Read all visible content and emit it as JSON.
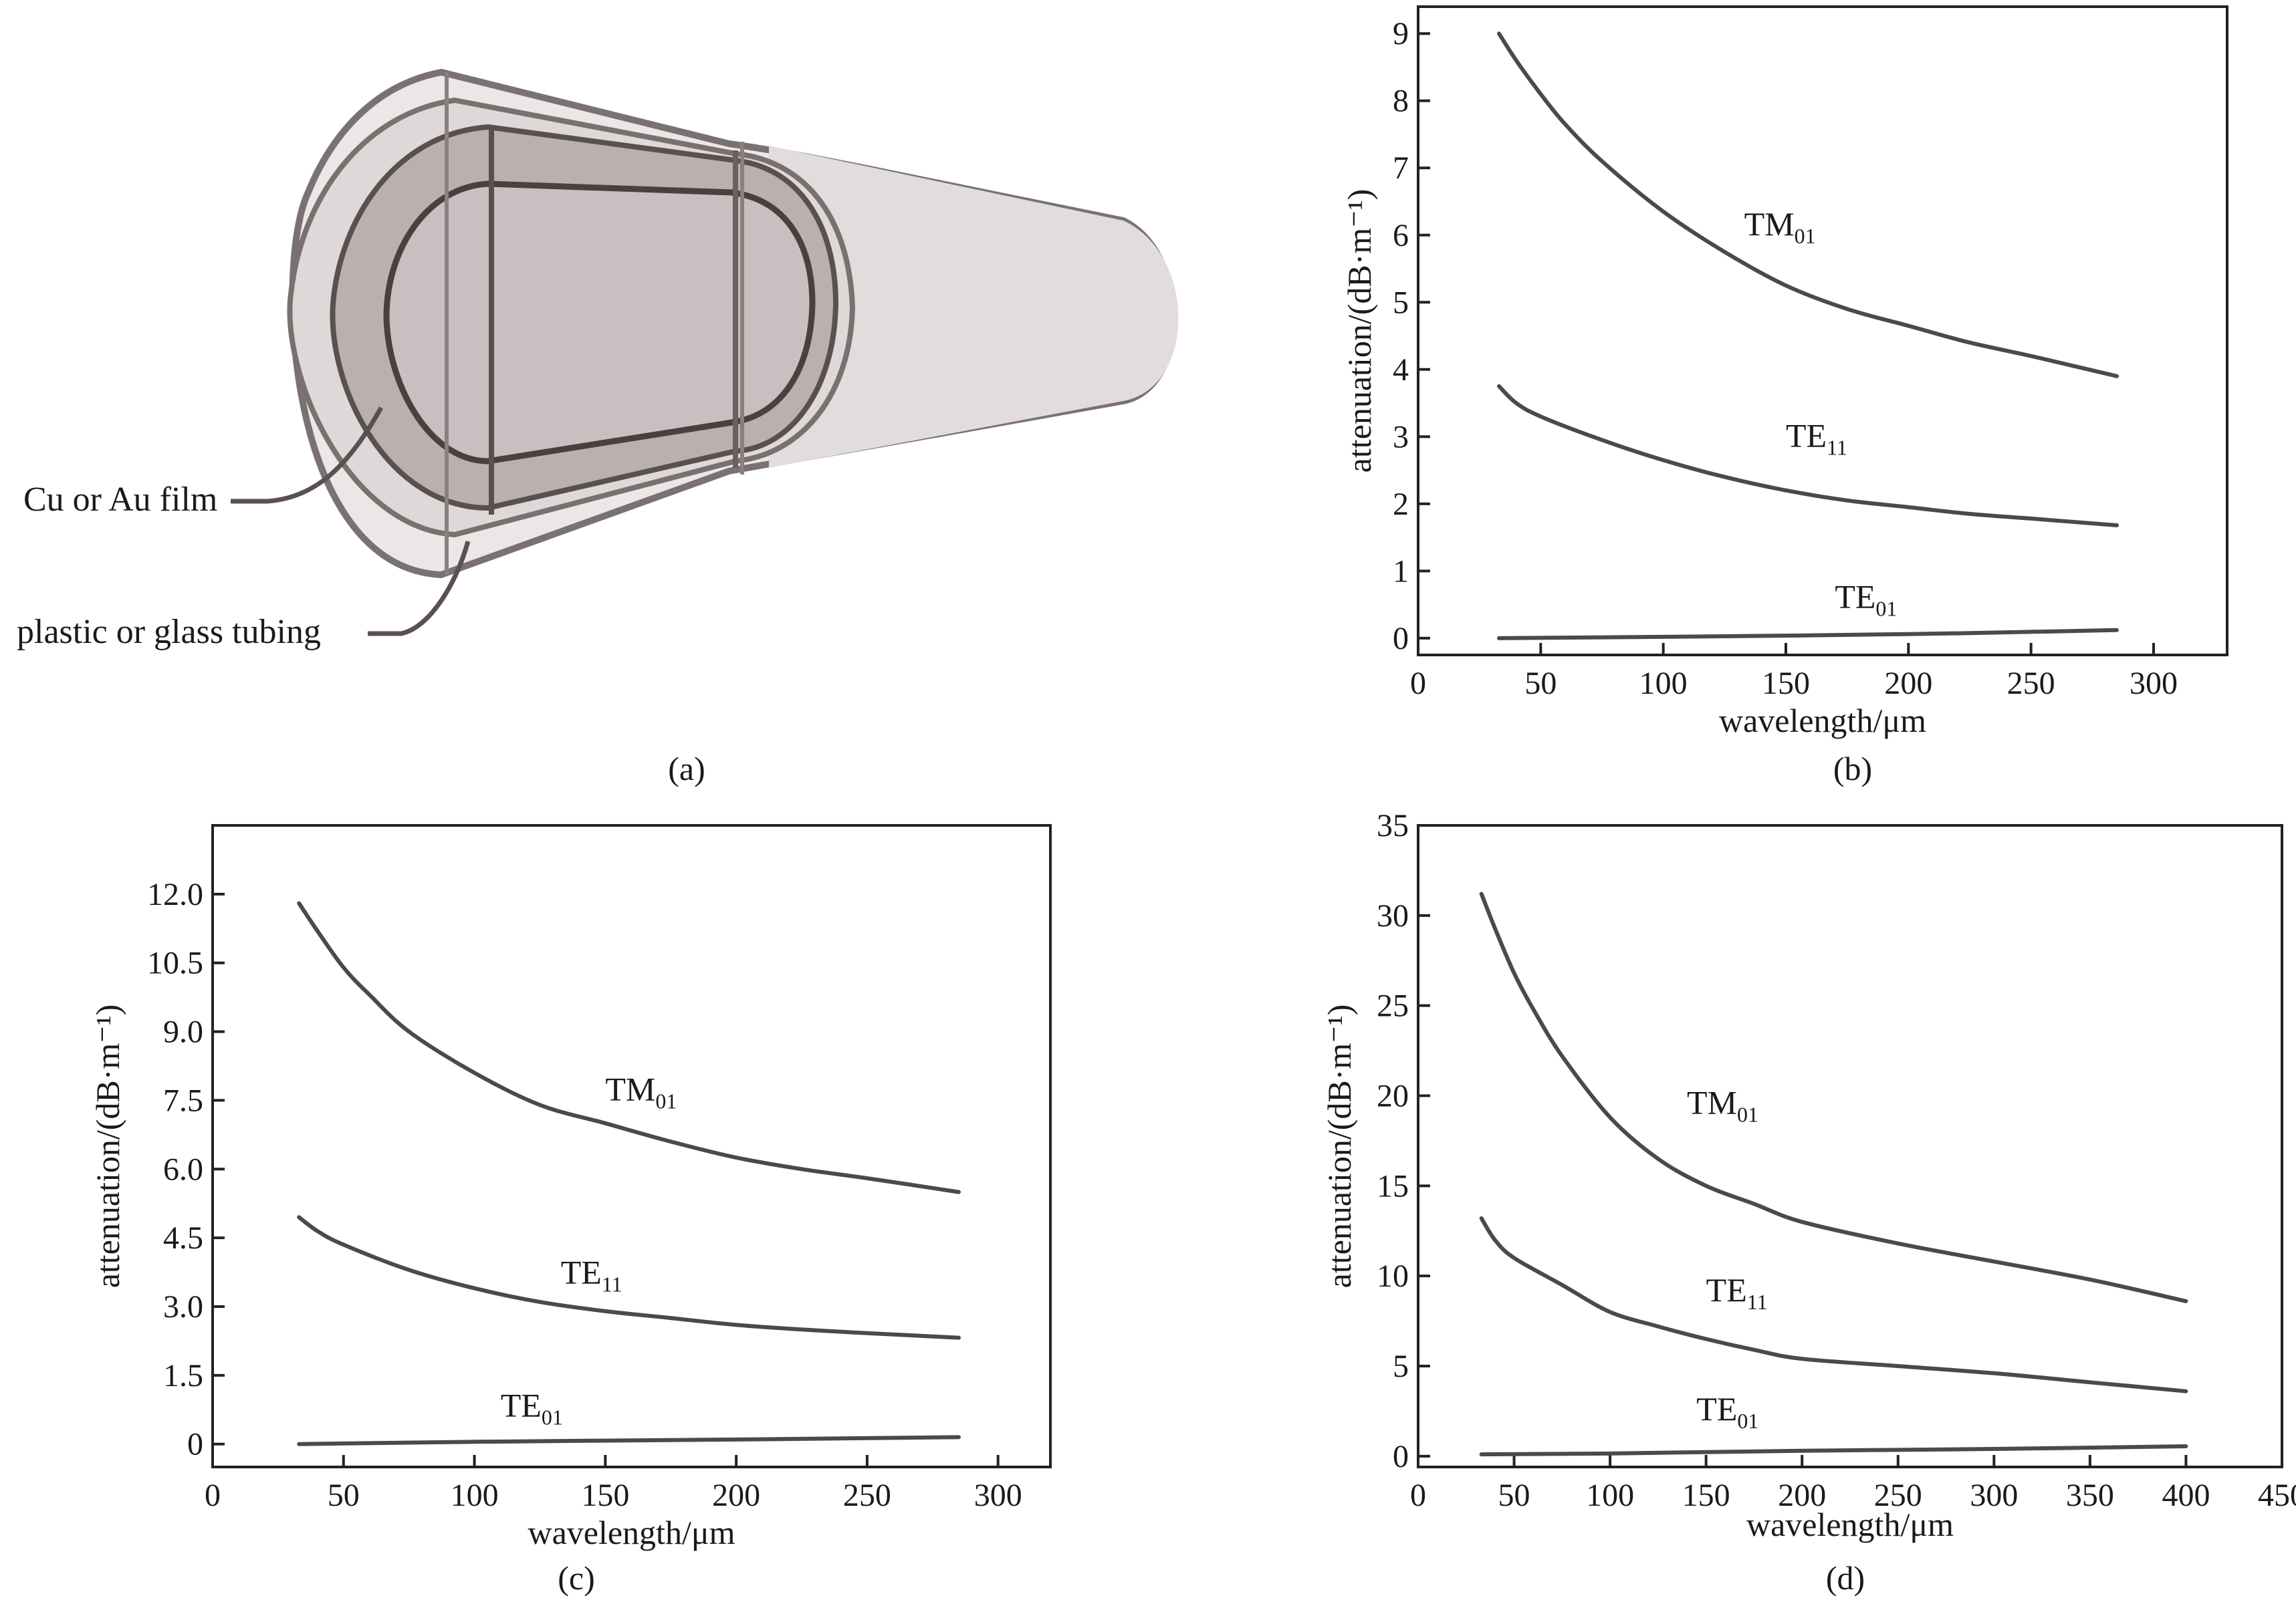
{
  "panels": {
    "a": "(a)",
    "b": "(b)",
    "c": "(c)",
    "d": "(d)"
  },
  "diagram": {
    "labels": {
      "film": "Cu or Au film",
      "tubing": "plastic or glass tubing"
    }
  },
  "chart_data": [
    {
      "id": "b",
      "type": "line",
      "xlabel": "wavelength/μm",
      "ylabel": "attenuation/(dB·m⁻¹)",
      "xlim": [
        0,
        330
      ],
      "ylim": [
        -0.25,
        9.4
      ],
      "xticks": [
        0,
        50,
        100,
        150,
        200,
        250,
        300
      ],
      "yticks": [
        0,
        1,
        2,
        3,
        4,
        5,
        6,
        7,
        8,
        9
      ],
      "ytick_labels": [
        "0",
        "1",
        "2",
        "3",
        "4",
        "5",
        "6",
        "7",
        "8",
        "9"
      ],
      "series": [
        {
          "name": "TM",
          "sub": "01",
          "label_at": [
            133,
            6.0
          ],
          "x": [
            33,
            40,
            50,
            60,
            75,
            100,
            125,
            150,
            175,
            200,
            225,
            250,
            285
          ],
          "y": [
            9.0,
            8.6,
            8.1,
            7.65,
            7.1,
            6.35,
            5.75,
            5.25,
            4.9,
            4.65,
            4.4,
            4.2,
            3.9
          ]
        },
        {
          "name": "TE",
          "sub": "11",
          "label_at": [
            150,
            2.85
          ],
          "x": [
            33,
            40,
            50,
            75,
            100,
            125,
            150,
            175,
            200,
            225,
            250,
            285
          ],
          "y": [
            3.75,
            3.5,
            3.3,
            2.95,
            2.65,
            2.4,
            2.2,
            2.05,
            1.95,
            1.85,
            1.78,
            1.68
          ]
        },
        {
          "name": "TE",
          "sub": "01",
          "label_at": [
            170,
            0.45
          ],
          "x": [
            33,
            100,
            200,
            285
          ],
          "y": [
            0.0,
            0.02,
            0.06,
            0.12
          ]
        }
      ]
    },
    {
      "id": "c",
      "type": "line",
      "xlabel": "wavelength/μm",
      "ylabel": "attenuation/(dB·m⁻¹)",
      "xlim": [
        0,
        320
      ],
      "ylim": [
        -0.5,
        13.5
      ],
      "xticks": [
        0,
        50,
        100,
        150,
        200,
        250,
        300
      ],
      "yticks": [
        0,
        1.5,
        3,
        4.5,
        6,
        7.5,
        9,
        10.5,
        12
      ],
      "ytick_labels": [
        "0",
        "1.5",
        "3.0",
        "4.5",
        "6.0",
        "7.5",
        "9.0",
        "10.5",
        "12.0"
      ],
      "series": [
        {
          "name": "TM",
          "sub": "01",
          "label_at": [
            150,
            7.5
          ],
          "x": [
            33,
            40,
            50,
            60,
            75,
            100,
            125,
            150,
            175,
            200,
            225,
            250,
            285
          ],
          "y": [
            11.8,
            11.2,
            10.4,
            9.8,
            9.0,
            8.1,
            7.4,
            7.0,
            6.6,
            6.25,
            6.0,
            5.8,
            5.5
          ]
        },
        {
          "name": "TE",
          "sub": "11",
          "label_at": [
            133,
            3.5
          ],
          "x": [
            33,
            40,
            50,
            75,
            100,
            125,
            150,
            175,
            200,
            225,
            250,
            285
          ],
          "y": [
            4.95,
            4.65,
            4.35,
            3.8,
            3.4,
            3.1,
            2.9,
            2.75,
            2.6,
            2.5,
            2.42,
            2.32
          ]
        },
        {
          "name": "TE",
          "sub": "01",
          "label_at": [
            110,
            0.6
          ],
          "x": [
            33,
            100,
            200,
            285
          ],
          "y": [
            0.0,
            0.05,
            0.1,
            0.15
          ]
        }
      ]
    },
    {
      "id": "d",
      "type": "line",
      "xlabel": "wavelength/μm",
      "ylabel": "attenuation/(dB·m⁻¹)",
      "xlim": [
        0,
        450
      ],
      "ylim": [
        -0.6,
        35
      ],
      "xticks": [
        0,
        50,
        100,
        150,
        200,
        250,
        300,
        350,
        400,
        450
      ],
      "yticks": [
        0,
        5,
        10,
        15,
        20,
        25,
        30,
        35
      ],
      "ytick_labels": [
        "0",
        "5",
        "10",
        "15",
        "20",
        "25",
        "30",
        "35"
      ],
      "series": [
        {
          "name": "TM",
          "sub": "01",
          "label_at": [
            140,
            19.0
          ],
          "x": [
            33,
            40,
            50,
            60,
            75,
            100,
            125,
            150,
            175,
            200,
            250,
            300,
            350,
            400
          ],
          "y": [
            31.2,
            29.3,
            26.8,
            24.8,
            22.2,
            18.8,
            16.5,
            15.0,
            14.0,
            13.0,
            11.8,
            10.8,
            9.8,
            8.6
          ]
        },
        {
          "name": "TE",
          "sub": "11",
          "label_at": [
            150,
            8.6
          ],
          "x": [
            33,
            40,
            50,
            75,
            100,
            125,
            150,
            175,
            200,
            250,
            300,
            350,
            400
          ],
          "y": [
            13.2,
            12.0,
            11.0,
            9.5,
            8.0,
            7.2,
            6.5,
            5.9,
            5.4,
            5.0,
            4.6,
            4.1,
            3.6
          ]
        },
        {
          "name": "TE",
          "sub": "01",
          "label_at": [
            145,
            2.0
          ],
          "x": [
            33,
            100,
            200,
            300,
            400
          ],
          "y": [
            0.1,
            0.15,
            0.3,
            0.4,
            0.55
          ]
        }
      ]
    }
  ]
}
